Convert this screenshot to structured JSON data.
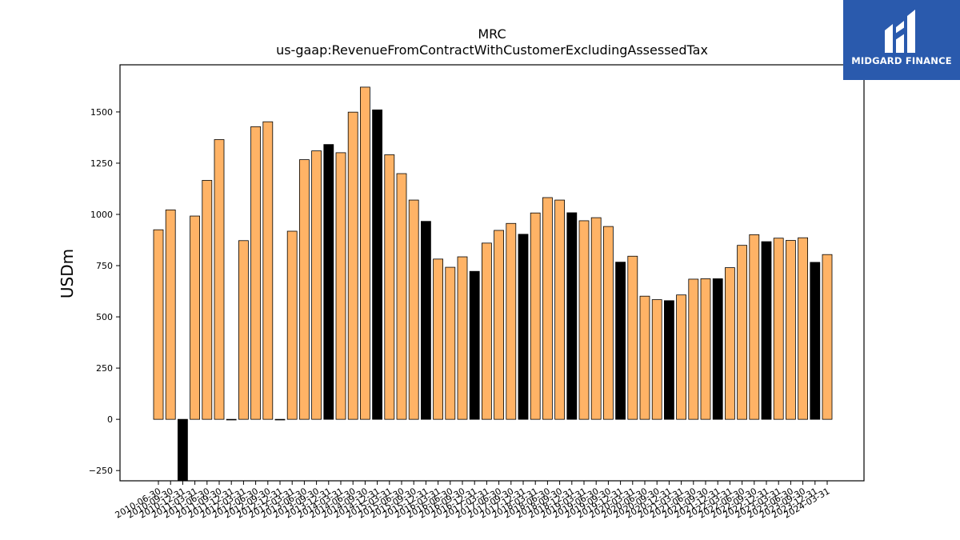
{
  "chart_data": {
    "type": "bar",
    "title": "MRC",
    "subtitle": "us-gaap:RevenueFromContractWithCustomerExcludingAssessedTax",
    "xlabel": "",
    "ylabel": "USDm",
    "ylim": [
      -300,
      1730
    ],
    "yticks": [
      -250,
      0,
      250,
      500,
      750,
      1000,
      1250,
      1500
    ],
    "ytick_labels": [
      "−250",
      "0",
      "250",
      "500",
      "750",
      "1000",
      "1250",
      "1500"
    ],
    "grid": false,
    "colors": {
      "quarter": "#ffb366",
      "fiscal_year_end": "#000000",
      "edge": "#000000"
    },
    "categories": [
      "2010-06-30",
      "2010-09-30",
      "2010-12-31",
      "2011-03-31",
      "2011-06-30",
      "2011-09-30",
      "2011-12-31",
      "2012-03-31",
      "2012-06-30",
      "2012-09-30",
      "2012-12-31",
      "2013-03-31",
      "2013-06-30",
      "2013-09-30",
      "2013-12-31",
      "2014-03-31",
      "2014-06-30",
      "2014-09-30",
      "2014-12-31",
      "2015-03-31",
      "2015-06-30",
      "2015-09-30",
      "2015-12-31",
      "2016-03-31",
      "2016-06-30",
      "2016-09-30",
      "2016-12-31",
      "2017-03-31",
      "2017-06-30",
      "2017-09-30",
      "2017-12-31",
      "2018-03-31",
      "2018-06-30",
      "2018-09-30",
      "2018-12-31",
      "2019-03-31",
      "2019-06-30",
      "2019-09-30",
      "2019-12-31",
      "2020-03-31",
      "2020-06-30",
      "2020-09-30",
      "2020-12-31",
      "2021-03-31",
      "2021-06-30",
      "2021-09-30",
      "2021-12-31",
      "2022-03-31",
      "2022-06-30",
      "2022-09-30",
      "2022-12-31",
      "2023-03-31",
      "2023-06-30",
      "2023-09-30",
      "2023-12-31",
      "2024-03-31"
    ],
    "values": [
      925,
      1022,
      -320,
      992,
      1166,
      1365,
      0,
      872,
      1428,
      1452,
      0,
      918,
      1267,
      1310,
      1341,
      1301,
      1499,
      1621,
      1510,
      1291,
      1199,
      1070,
      966,
      782,
      742,
      793,
      722,
      860,
      922,
      956,
      903,
      1007,
      1082,
      1070,
      1008,
      969,
      984,
      941,
      767,
      796,
      601,
      584,
      579,
      607,
      684,
      686,
      686,
      740,
      849,
      901,
      867,
      884,
      873,
      886,
      766,
      804
    ],
    "highlight": [
      false,
      false,
      true,
      false,
      false,
      false,
      true,
      false,
      false,
      false,
      true,
      false,
      false,
      false,
      true,
      false,
      false,
      false,
      true,
      false,
      false,
      false,
      true,
      false,
      false,
      false,
      true,
      false,
      false,
      false,
      true,
      false,
      false,
      false,
      true,
      false,
      false,
      false,
      true,
      false,
      false,
      false,
      true,
      false,
      false,
      false,
      true,
      false,
      false,
      false,
      true,
      false,
      false,
      false,
      true,
      false
    ]
  },
  "logo": {
    "name": "MIDGARD FINANCE"
  }
}
